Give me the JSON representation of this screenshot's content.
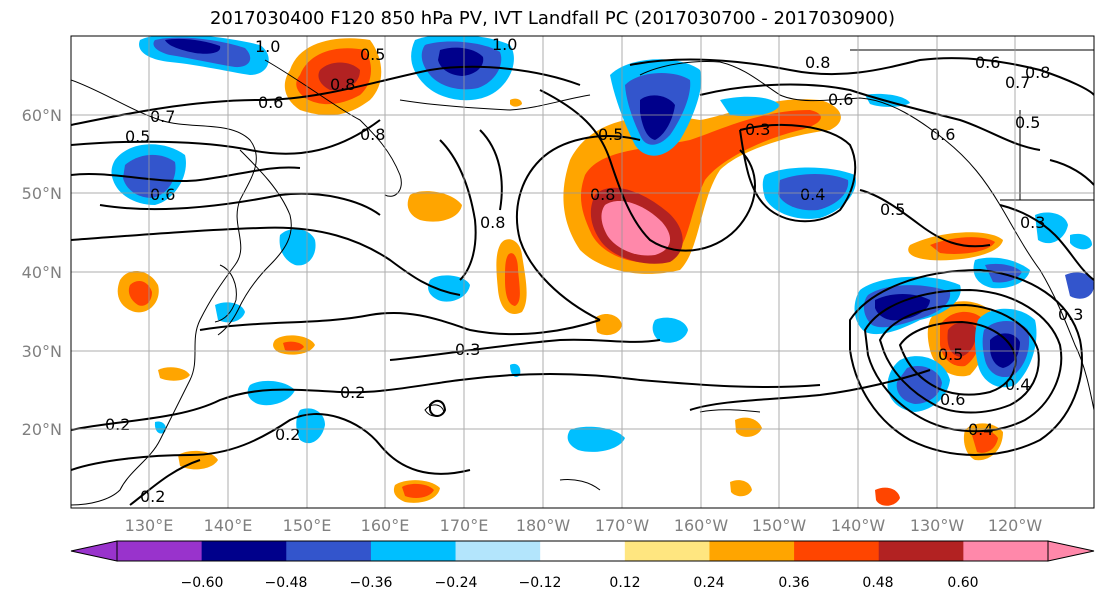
{
  "title": "2017030400 F120 850 hPa PV, IVT Landfall PC (2017030700 - 2017030900)",
  "lat_labels": [
    "60°N",
    "50°N",
    "40°N",
    "30°N",
    "20°N"
  ],
  "lon_labels": [
    "130°E",
    "140°E",
    "150°E",
    "160°E",
    "170°E",
    "180°W",
    "170°W",
    "160°W",
    "150°W",
    "140°W",
    "130°W",
    "120°W"
  ],
  "colorbar": {
    "tick_labels": [
      "−0.60",
      "−0.48",
      "−0.36",
      "−0.24",
      "−0.12",
      "0.12",
      "0.24",
      "0.36",
      "0.48",
      "0.60"
    ],
    "colors": [
      "#9933cc",
      "#00008b",
      "#3355cc",
      "#00bfff",
      "#b3e5fc",
      "#ffffff",
      "#ffe680",
      "#ffa500",
      "#ff4500",
      "#b22222",
      "#ff88aa"
    ]
  },
  "contour_labels": [
    "1.0",
    "1.0",
    "0.8",
    "0.6",
    "0.7",
    "0.5",
    "0.6",
    "0.5",
    "0.8",
    "0.8",
    "0.8",
    "0.8",
    "0.6",
    "0.5",
    "0.4",
    "0.3",
    "0.5",
    "0.3",
    "0.6",
    "0.3",
    "0.2",
    "0.2",
    "0.2",
    "0.2",
    "0.5",
    "0.4",
    "0.6",
    "0.4",
    "0.3",
    "0.5",
    "0.6",
    "0.7",
    "0.8"
  ]
}
